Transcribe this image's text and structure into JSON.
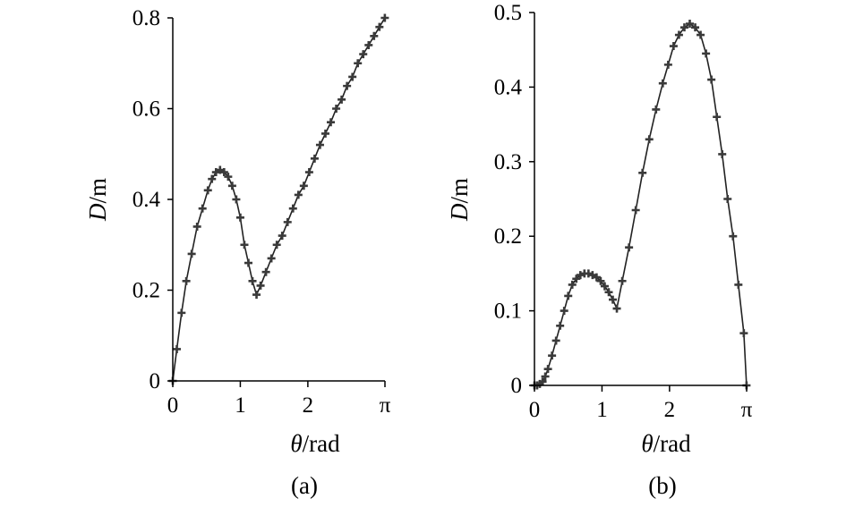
{
  "chart_data": [
    {
      "type": "line",
      "caption": "(a)",
      "xlabel_var": "θ",
      "xlabel_unit": "/rad",
      "ylabel_var": "D",
      "ylabel_unit": "/m",
      "xlim": [
        0,
        3.14159
      ],
      "ylim": [
        0,
        0.8
      ],
      "xticks": [
        {
          "value": 0,
          "label": "0"
        },
        {
          "value": 1,
          "label": "1"
        },
        {
          "value": 2,
          "label": "2"
        },
        {
          "value": 3.14159,
          "label": "π"
        }
      ],
      "yticks": [
        {
          "value": 0,
          "label": "0"
        },
        {
          "value": 0.2,
          "label": "0.2"
        },
        {
          "value": 0.4,
          "label": "0.4"
        },
        {
          "value": 0.6,
          "label": "0.6"
        },
        {
          "value": 0.8,
          "label": "0.8"
        }
      ],
      "grid": false,
      "marker": "plus",
      "series": [
        {
          "x": [
            0,
            0.06,
            0.13,
            0.2,
            0.28,
            0.36,
            0.44,
            0.52,
            0.58,
            0.64,
            0.7,
            0.76,
            0.82,
            0.88,
            0.94,
            1.0,
            1.06,
            1.12,
            1.18,
            1.24,
            1.3,
            1.38,
            1.46,
            1.54,
            1.62,
            1.7,
            1.78,
            1.86,
            1.94,
            2.02,
            2.1,
            2.18,
            2.26,
            2.34,
            2.42,
            2.5,
            2.58,
            2.66,
            2.74,
            2.82,
            2.9,
            2.98,
            3.06,
            3.14
          ],
          "y": [
            0.0,
            0.07,
            0.15,
            0.22,
            0.28,
            0.34,
            0.38,
            0.42,
            0.445,
            0.46,
            0.465,
            0.46,
            0.45,
            0.43,
            0.4,
            0.36,
            0.3,
            0.26,
            0.22,
            0.19,
            0.21,
            0.24,
            0.27,
            0.3,
            0.32,
            0.35,
            0.38,
            0.41,
            0.43,
            0.46,
            0.49,
            0.52,
            0.545,
            0.57,
            0.6,
            0.62,
            0.65,
            0.67,
            0.7,
            0.72,
            0.74,
            0.76,
            0.78,
            0.8
          ]
        }
      ]
    },
    {
      "type": "line",
      "caption": "(b)",
      "xlabel_var": "θ",
      "xlabel_unit": "/rad",
      "ylabel_var": "D",
      "ylabel_unit": "/m",
      "xlim": [
        0,
        3.14159
      ],
      "ylim": [
        0,
        0.5
      ],
      "xticks": [
        {
          "value": 0,
          "label": "0"
        },
        {
          "value": 1,
          "label": "1"
        },
        {
          "value": 2,
          "label": "2"
        },
        {
          "value": 3.14159,
          "label": "π"
        }
      ],
      "yticks": [
        {
          "value": 0,
          "label": "0"
        },
        {
          "value": 0.1,
          "label": "0.1"
        },
        {
          "value": 0.2,
          "label": "0.2"
        },
        {
          "value": 0.3,
          "label": "0.3"
        },
        {
          "value": 0.4,
          "label": "0.4"
        },
        {
          "value": 0.5,
          "label": "0.5"
        }
      ],
      "grid": false,
      "marker": "plus",
      "series": [
        {
          "x": [
            0,
            0.04,
            0.08,
            0.12,
            0.16,
            0.2,
            0.26,
            0.32,
            0.38,
            0.44,
            0.5,
            0.56,
            0.62,
            0.68,
            0.74,
            0.8,
            0.86,
            0.92,
            0.98,
            1.04,
            1.1,
            1.16,
            1.22,
            1.3,
            1.4,
            1.5,
            1.6,
            1.7,
            1.8,
            1.9,
            1.98,
            2.06,
            2.14,
            2.22,
            2.3,
            2.38,
            2.46,
            2.54,
            2.62,
            2.7,
            2.78,
            2.86,
            2.94,
            3.02,
            3.1,
            3.14
          ],
          "y": [
            0.0,
            0.0,
            0.002,
            0.005,
            0.012,
            0.022,
            0.04,
            0.06,
            0.08,
            0.1,
            0.12,
            0.135,
            0.143,
            0.148,
            0.15,
            0.15,
            0.148,
            0.145,
            0.14,
            0.133,
            0.125,
            0.115,
            0.103,
            0.14,
            0.185,
            0.235,
            0.285,
            0.33,
            0.37,
            0.405,
            0.43,
            0.455,
            0.47,
            0.48,
            0.485,
            0.48,
            0.47,
            0.445,
            0.41,
            0.36,
            0.31,
            0.25,
            0.2,
            0.135,
            0.07,
            0.0
          ]
        }
      ]
    }
  ]
}
